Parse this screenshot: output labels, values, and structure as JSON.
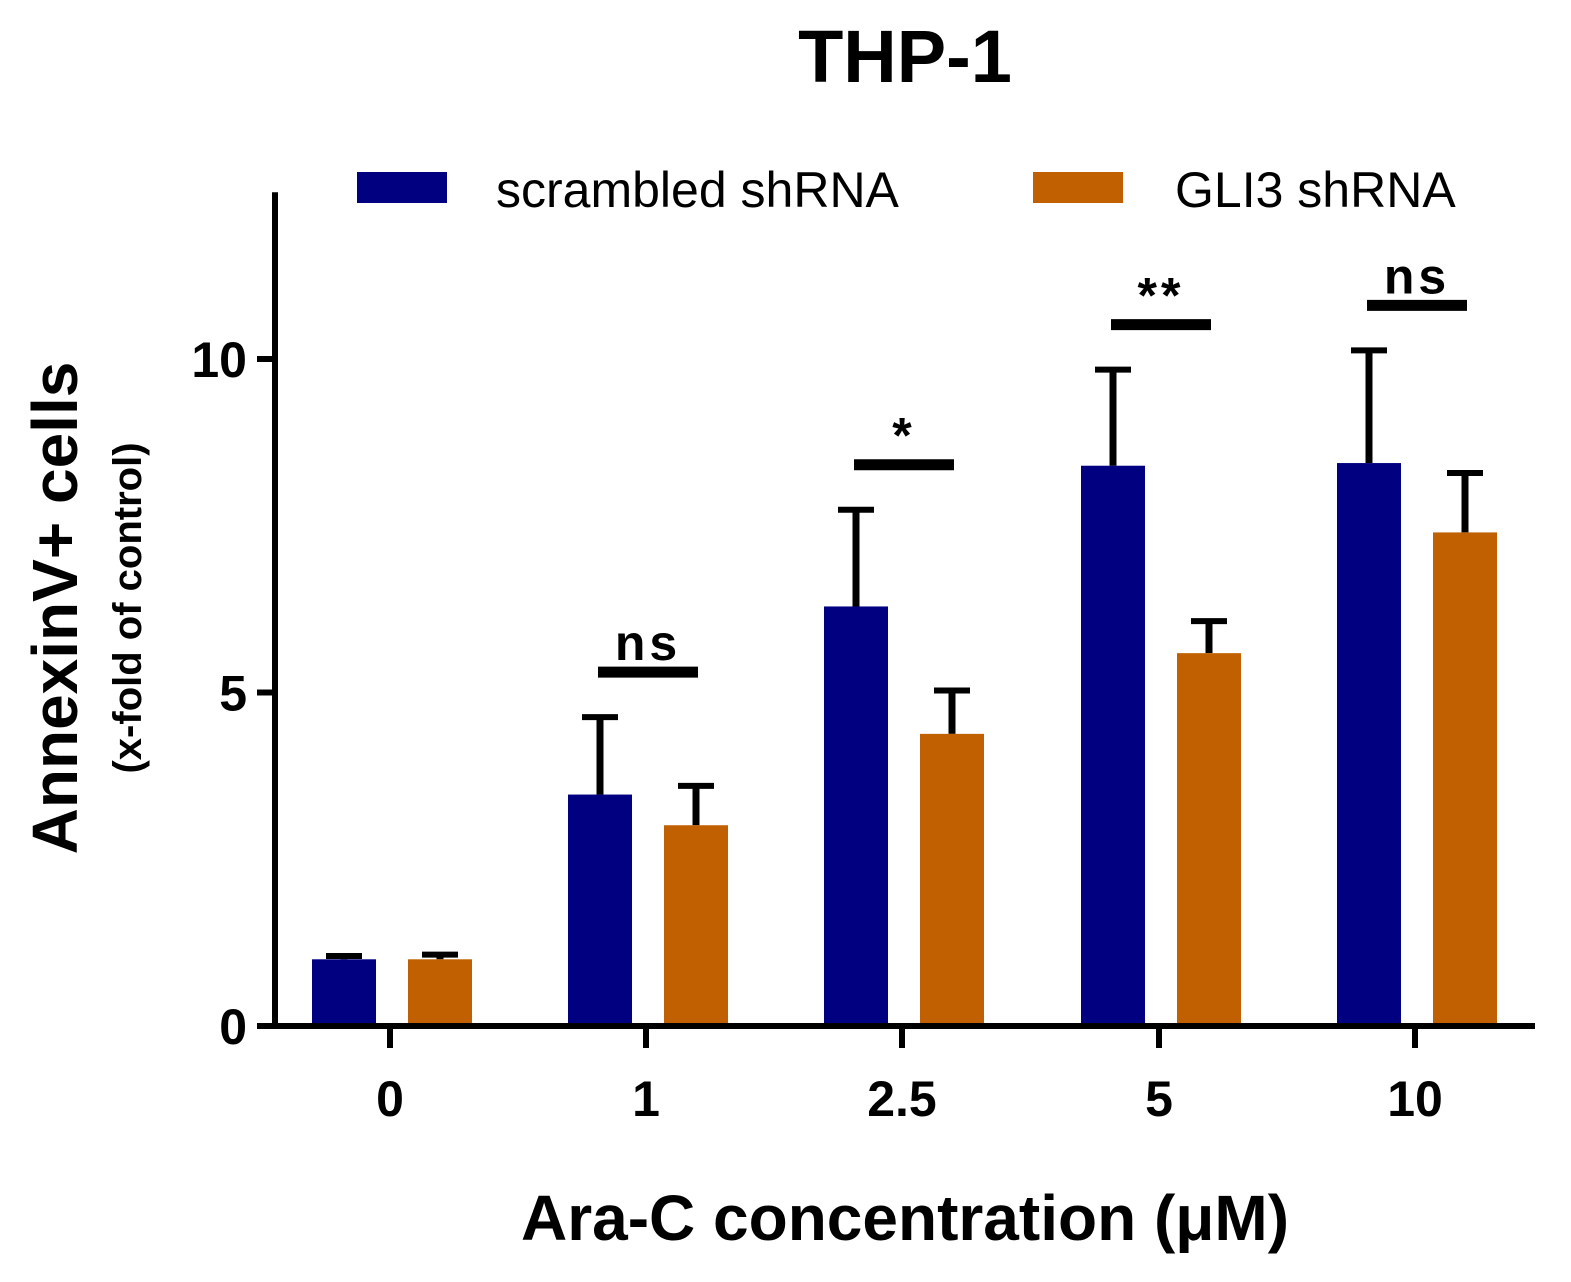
{
  "chart_data": {
    "type": "bar",
    "title": "THP-1",
    "xlabel": "Ara-C  concentration (μM)",
    "ylabel": "AnnexinV+ cells",
    "ylabel_sub": "(x-fold of control)",
    "categories": [
      "0",
      "1",
      "2.5",
      "5",
      "10"
    ],
    "series": [
      {
        "name": "scrambled shRNA",
        "color": "#000080",
        "values": [
          1.0,
          3.47,
          6.29,
          8.4,
          8.44
        ],
        "errors": [
          0.05,
          1.16,
          1.45,
          1.44,
          1.69
        ]
      },
      {
        "name": "GLI3 shRNA",
        "color": "#C06000",
        "values": [
          1.0,
          3.01,
          4.38,
          5.59,
          7.4
        ],
        "errors": [
          0.07,
          0.59,
          0.65,
          0.48,
          0.89
        ]
      }
    ],
    "significance": [
      "",
      "ns",
      "*",
      "**",
      "ns"
    ],
    "ylim": [
      0,
      12.5
    ],
    "yticks": [
      0,
      5,
      10
    ],
    "grid": false,
    "legend": "top"
  }
}
